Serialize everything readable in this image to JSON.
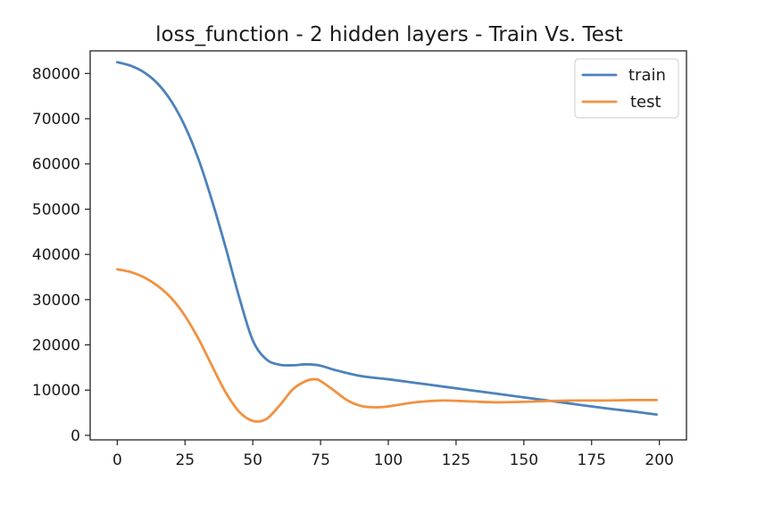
{
  "chart_data": {
    "type": "line",
    "title": "loss_function - 2 hidden layers - Train Vs. Test",
    "xlabel": "",
    "ylabel": "",
    "xlim": [
      -10,
      210
    ],
    "ylim": [
      -1000,
      85000
    ],
    "x_ticks": [
      0,
      25,
      50,
      75,
      100,
      125,
      150,
      175,
      200
    ],
    "x_tick_labels": [
      "0",
      "25",
      "50",
      "75",
      "100",
      "125",
      "150",
      "175",
      "200"
    ],
    "y_ticks": [
      0,
      10000,
      20000,
      30000,
      40000,
      50000,
      60000,
      70000,
      80000
    ],
    "y_tick_labels": [
      "0",
      "10000",
      "20000",
      "30000",
      "40000",
      "50000",
      "60000",
      "70000",
      "80000"
    ],
    "grid": false,
    "legend_position": "top-right",
    "series": [
      {
        "name": "train",
        "color": "#4c82bb",
        "x": [
          0,
          5,
          10,
          15,
          20,
          25,
          30,
          35,
          40,
          45,
          50,
          55,
          60,
          65,
          70,
          75,
          80,
          90,
          100,
          110,
          120,
          130,
          140,
          150,
          160,
          170,
          180,
          190,
          199
        ],
        "y": [
          82500,
          81700,
          80200,
          77700,
          73800,
          68300,
          61000,
          51800,
          41500,
          30500,
          21000,
          16800,
          15600,
          15500,
          15700,
          15400,
          14500,
          13100,
          12400,
          11600,
          10800,
          10000,
          9200,
          8400,
          7600,
          6800,
          6000,
          5300,
          4600
        ]
      },
      {
        "name": "test",
        "color": "#f29140",
        "x": [
          0,
          5,
          10,
          15,
          20,
          25,
          30,
          35,
          40,
          45,
          50,
          55,
          60,
          65,
          70,
          73,
          75,
          80,
          85,
          90,
          95,
          100,
          110,
          120,
          130,
          140,
          150,
          160,
          170,
          180,
          190,
          199
        ],
        "y": [
          36700,
          36100,
          34900,
          33000,
          30300,
          26400,
          21300,
          15300,
          9500,
          5200,
          3200,
          3600,
          6700,
          10300,
          12100,
          12400,
          12000,
          9900,
          7700,
          6500,
          6200,
          6400,
          7300,
          7700,
          7500,
          7300,
          7400,
          7600,
          7700,
          7700,
          7800,
          7800
        ]
      }
    ]
  }
}
